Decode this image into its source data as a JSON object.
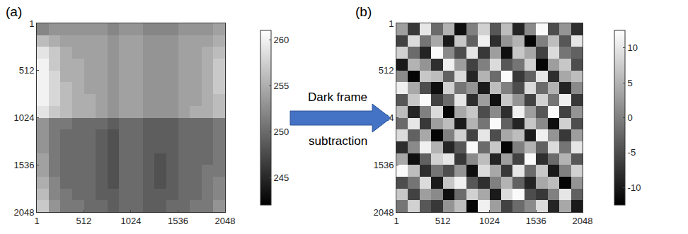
{
  "chart_data": [
    {
      "type": "heatmap",
      "title": "(a)",
      "x": [
        1,
        128,
        256,
        384,
        512,
        640,
        768,
        896,
        1024,
        1152,
        1280,
        1408,
        1536,
        1664,
        1792,
        1920,
        2048
      ],
      "y": [
        1,
        128,
        256,
        384,
        512,
        640,
        768,
        896,
        1024,
        1152,
        1280,
        1408,
        1536,
        1664,
        1792,
        1920,
        2048
      ],
      "xlim": [
        1,
        2048
      ],
      "ylim": [
        2048,
        1
      ],
      "xticks": [
        1,
        512,
        1024,
        1536,
        2048
      ],
      "yticks": [
        1,
        512,
        1024,
        1536,
        2048
      ],
      "color": "gray",
      "zlim": [
        242,
        261
      ],
      "zticks": [
        245,
        250,
        255,
        260
      ],
      "z": [
        [
          252,
          253,
          253,
          253,
          253,
          253,
          252,
          253,
          253,
          252,
          252,
          252,
          253,
          253,
          253,
          254
        ],
        [
          256,
          255,
          254,
          254,
          254,
          254,
          253,
          254,
          254,
          253,
          253,
          253,
          254,
          254,
          254,
          255
        ],
        [
          259,
          257,
          255,
          254,
          254,
          254,
          253,
          254,
          254,
          253,
          253,
          253,
          254,
          254,
          255,
          256
        ],
        [
          260,
          257,
          255,
          255,
          254,
          254,
          253,
          254,
          254,
          253,
          253,
          253,
          254,
          254,
          255,
          257
        ],
        [
          260,
          258,
          255,
          255,
          254,
          254,
          253,
          254,
          254,
          253,
          253,
          253,
          254,
          254,
          255,
          257
        ],
        [
          260,
          258,
          256,
          255,
          254,
          254,
          253,
          254,
          254,
          253,
          253,
          253,
          254,
          254,
          255,
          257
        ],
        [
          260,
          258,
          256,
          255,
          255,
          254,
          253,
          254,
          254,
          253,
          253,
          253,
          254,
          254,
          255,
          256
        ],
        [
          259,
          257,
          256,
          255,
          255,
          254,
          253,
          254,
          254,
          253,
          253,
          253,
          254,
          255,
          255,
          256
        ],
        [
          253,
          251,
          251,
          250,
          250,
          250,
          249,
          250,
          250,
          249,
          249,
          249,
          250,
          250,
          250,
          251
        ],
        [
          253,
          251,
          250,
          250,
          250,
          249,
          248,
          250,
          250,
          249,
          249,
          249,
          250,
          250,
          250,
          251
        ],
        [
          253,
          251,
          250,
          250,
          250,
          249,
          248,
          250,
          250,
          249,
          249,
          249,
          250,
          250,
          250,
          251
        ],
        [
          254,
          251,
          250,
          250,
          250,
          249,
          248,
          250,
          250,
          249,
          248,
          249,
          250,
          250,
          250,
          251
        ],
        [
          254,
          251,
          250,
          250,
          250,
          249,
          248,
          250,
          250,
          249,
          248,
          249,
          250,
          250,
          251,
          251
        ],
        [
          255,
          252,
          250,
          250,
          250,
          249,
          248,
          250,
          250,
          249,
          248,
          249,
          250,
          250,
          251,
          252
        ],
        [
          256,
          252,
          251,
          250,
          250,
          249,
          249,
          250,
          250,
          249,
          249,
          249,
          250,
          250,
          251,
          252
        ],
        [
          257,
          253,
          251,
          251,
          250,
          250,
          249,
          250,
          250,
          249,
          249,
          250,
          250,
          251,
          251,
          253
        ]
      ]
    },
    {
      "type": "heatmap",
      "title": "(b)",
      "x": [
        1,
        128,
        256,
        384,
        512,
        640,
        768,
        896,
        1024,
        1152,
        1280,
        1408,
        1536,
        1664,
        1792,
        1920,
        2048
      ],
      "y": [
        1,
        128,
        256,
        384,
        512,
        640,
        768,
        896,
        1024,
        1152,
        1280,
        1408,
        1536,
        1664,
        1792,
        1920,
        2048
      ],
      "xlim": [
        1,
        2048
      ],
      "ylim": [
        2048,
        1
      ],
      "xticks": [
        1,
        512,
        1024,
        1536,
        2048
      ],
      "yticks": [
        1,
        512,
        1024,
        1536,
        2048
      ],
      "color": "gray",
      "zlim": [
        -12.5,
        12.5
      ],
      "zticks": [
        -10,
        -5,
        0,
        5,
        10
      ],
      "z": [
        [
          3,
          -7,
          10,
          -2,
          5,
          -11,
          0,
          8,
          -4,
          6,
          -9,
          1,
          12,
          -5,
          2,
          -8
        ],
        [
          -6,
          9,
          -1,
          4,
          -10,
          7,
          -3,
          11,
          -8,
          2,
          5,
          -12,
          0,
          6,
          -4,
          10
        ],
        [
          8,
          -2,
          -9,
          12,
          1,
          -5,
          10,
          -7,
          3,
          -11,
          7,
          4,
          -6,
          9,
          -1,
          -3
        ],
        [
          -10,
          5,
          2,
          -8,
          11,
          3,
          -6,
          0,
          9,
          -4,
          -1,
          8,
          -12,
          3,
          7,
          -5
        ],
        [
          1,
          -12,
          7,
          6,
          -3,
          9,
          -9,
          5,
          -2,
          12,
          -7,
          -3,
          10,
          -8,
          4,
          6
        ],
        [
          11,
          4,
          -5,
          -11,
          8,
          -1,
          2,
          -10,
          6,
          0,
          -5,
          9,
          -2,
          5,
          -9,
          1
        ],
        [
          -4,
          7,
          12,
          -6,
          -2,
          10,
          -8,
          3,
          -11,
          7,
          2,
          -6,
          8,
          -1,
          11,
          -7
        ],
        [
          6,
          -9,
          0,
          9,
          -12,
          4,
          7,
          -5,
          1,
          -8,
          11,
          3,
          -4,
          12,
          -6,
          2
        ],
        [
          -2,
          10,
          -7,
          3,
          6,
          -10,
          5,
          -1,
          12,
          -3,
          -9,
          7,
          1,
          -11,
          8,
          -5
        ],
        [
          9,
          -3,
          4,
          -12,
          0,
          8,
          -6,
          10,
          -5,
          4,
          6,
          -10,
          11,
          2,
          -7,
          3
        ],
        [
          -8,
          1,
          11,
          5,
          -9,
          -4,
          12,
          -2,
          7,
          -12,
          0,
          5,
          -3,
          9,
          -1,
          10
        ],
        [
          4,
          -11,
          -3,
          8,
          10,
          -7,
          1,
          6,
          -9,
          3,
          -6,
          12,
          -8,
          -2,
          5,
          -4
        ],
        [
          12,
          6,
          -8,
          -1,
          -5,
          2,
          -11,
          9,
          4,
          -7,
          10,
          -2,
          7,
          -10,
          0,
          8
        ],
        [
          -5,
          -1,
          9,
          -10,
          7,
          11,
          -4,
          -8,
          0,
          5,
          -3,
          -9,
          4,
          6,
          -12,
          2
        ],
        [
          7,
          -6,
          3,
          1,
          -11,
          -2,
          8,
          4,
          -10,
          9,
          12,
          -5,
          -7,
          0,
          10,
          -3
        ],
        [
          -1,
          8,
          -4,
          -7,
          2,
          6,
          -12,
          11,
          3,
          -6,
          -2,
          1,
          9,
          -9,
          4,
          -10
        ]
      ]
    }
  ],
  "arrow": {
    "text": [
      "Dark frame",
      "subtraction"
    ]
  }
}
